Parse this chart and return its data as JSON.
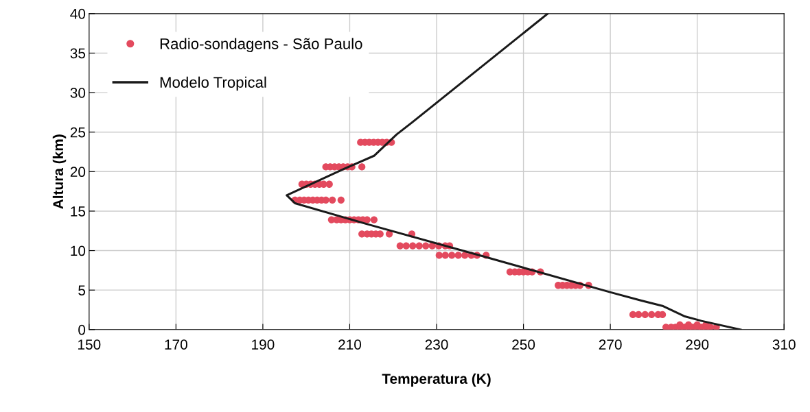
{
  "chart_data": {
    "type": "scatter",
    "xlabel": "Temperatura (K)",
    "ylabel": "Altura (km)",
    "xlim": [
      150,
      310
    ],
    "xticks": [
      150,
      170,
      190,
      210,
      230,
      250,
      270,
      290,
      310
    ],
    "ylim": [
      0,
      40
    ],
    "yticks": [
      0,
      5,
      10,
      15,
      20,
      25,
      30,
      35,
      40
    ],
    "grid": true,
    "legend": "top left",
    "series": [
      {
        "name": "Radio-sondagens - São Paulo",
        "marker": "circle",
        "color": "#e34a5e",
        "x": [
          212.5,
          213.5,
          214.5,
          215.5,
          216.5,
          217.5,
          218.5,
          219.6,
          204.5,
          205.5,
          206.5,
          207.5,
          208.5,
          209.5,
          210.5,
          212.8,
          199,
          200,
          201,
          202,
          203,
          204,
          205.3,
          197.4,
          198.5,
          199.5,
          200.5,
          201.5,
          202.5,
          203.5,
          204.5,
          206,
          208,
          205.8,
          207,
          208,
          209,
          210,
          211,
          212,
          213,
          214,
          215.6,
          212.8,
          214,
          215,
          216,
          217,
          219.1,
          224.3,
          221.6,
          223,
          224.5,
          226,
          227.5,
          229,
          230.5,
          232,
          233,
          230.6,
          232,
          233.5,
          235,
          236.5,
          238,
          239.3,
          241.4,
          246.9,
          248,
          249,
          250,
          251,
          252,
          253.9,
          258,
          259,
          260,
          261,
          262,
          263,
          265,
          275.2,
          276.5,
          278,
          279.5,
          281,
          282,
          282.8,
          284,
          285,
          286,
          287,
          288,
          289,
          290,
          291,
          292,
          293,
          294.4,
          286,
          288,
          290,
          292
        ],
        "values": [
          23.7,
          23.7,
          23.7,
          23.7,
          23.7,
          23.7,
          23.7,
          23.7,
          20.6,
          20.6,
          20.6,
          20.6,
          20.6,
          20.6,
          20.6,
          20.6,
          18.4,
          18.4,
          18.4,
          18.4,
          18.4,
          18.4,
          18.4,
          16.4,
          16.4,
          16.4,
          16.4,
          16.4,
          16.4,
          16.4,
          16.4,
          16.4,
          16.4,
          13.9,
          13.9,
          13.9,
          13.9,
          13.9,
          13.9,
          13.9,
          13.9,
          13.9,
          13.9,
          12.1,
          12.1,
          12.1,
          12.1,
          12.1,
          12.1,
          12.1,
          10.6,
          10.6,
          10.6,
          10.6,
          10.6,
          10.6,
          10.6,
          10.6,
          10.6,
          9.4,
          9.4,
          9.4,
          9.4,
          9.4,
          9.4,
          9.4,
          9.4,
          7.3,
          7.3,
          7.3,
          7.3,
          7.3,
          7.3,
          7.3,
          5.6,
          5.6,
          5.6,
          5.6,
          5.6,
          5.6,
          5.6,
          1.9,
          1.9,
          1.9,
          1.9,
          1.9,
          1.9,
          0.3,
          0.3,
          0.3,
          0.3,
          0.3,
          0.3,
          0.3,
          0.3,
          0.3,
          0.3,
          0.3,
          0.3,
          0.6,
          0.6,
          0.6,
          0.6
        ]
      },
      {
        "name": "Modelo Tropical",
        "type": "line",
        "marker": "none",
        "line_style": "solid",
        "color": "#1a1a1a",
        "x": [
          255.6,
          224.3,
          220.8,
          215.6,
          208.5,
          195.5,
          197.4,
          213.7,
          241.2,
          270.2,
          277,
          282,
          287,
          291,
          300
        ],
        "values": [
          40,
          26.2,
          24.7,
          22.0,
          20.3,
          17.0,
          16.0,
          13.4,
          9.2,
          4.7,
          3.7,
          3.0,
          1.7,
          1.1,
          0
        ]
      }
    ]
  }
}
